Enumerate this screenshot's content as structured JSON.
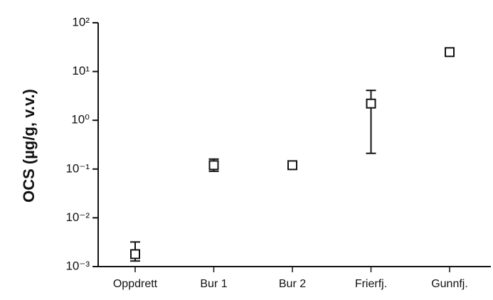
{
  "chart_data": {
    "type": "scatter",
    "y_label": "OCS (µg/g, v.v.)",
    "categories": [
      "Oppdrett",
      "Bur 1",
      "Bur 2",
      "Frierfj.",
      "Gunnfj."
    ],
    "series": [
      {
        "color": "#111111",
        "values": [
          0.0018,
          0.12,
          0.12,
          2.2,
          25
        ],
        "lower": [
          0.0013,
          0.09,
          null,
          0.21,
          null
        ],
        "upper": [
          0.0032,
          0.16,
          null,
          4.1,
          null
        ]
      }
    ],
    "log_y": true,
    "ylim": [
      0.001,
      100
    ],
    "yticks": [
      {
        "value": 100,
        "label": "10²"
      },
      {
        "value": 10,
        "label": "10¹"
      },
      {
        "value": 1,
        "label": "10⁰"
      },
      {
        "value": 0.1,
        "label": "10⁻¹"
      },
      {
        "value": 0.01,
        "label": "10⁻²"
      },
      {
        "value": 0.001,
        "label": "10⁻³"
      }
    ]
  }
}
